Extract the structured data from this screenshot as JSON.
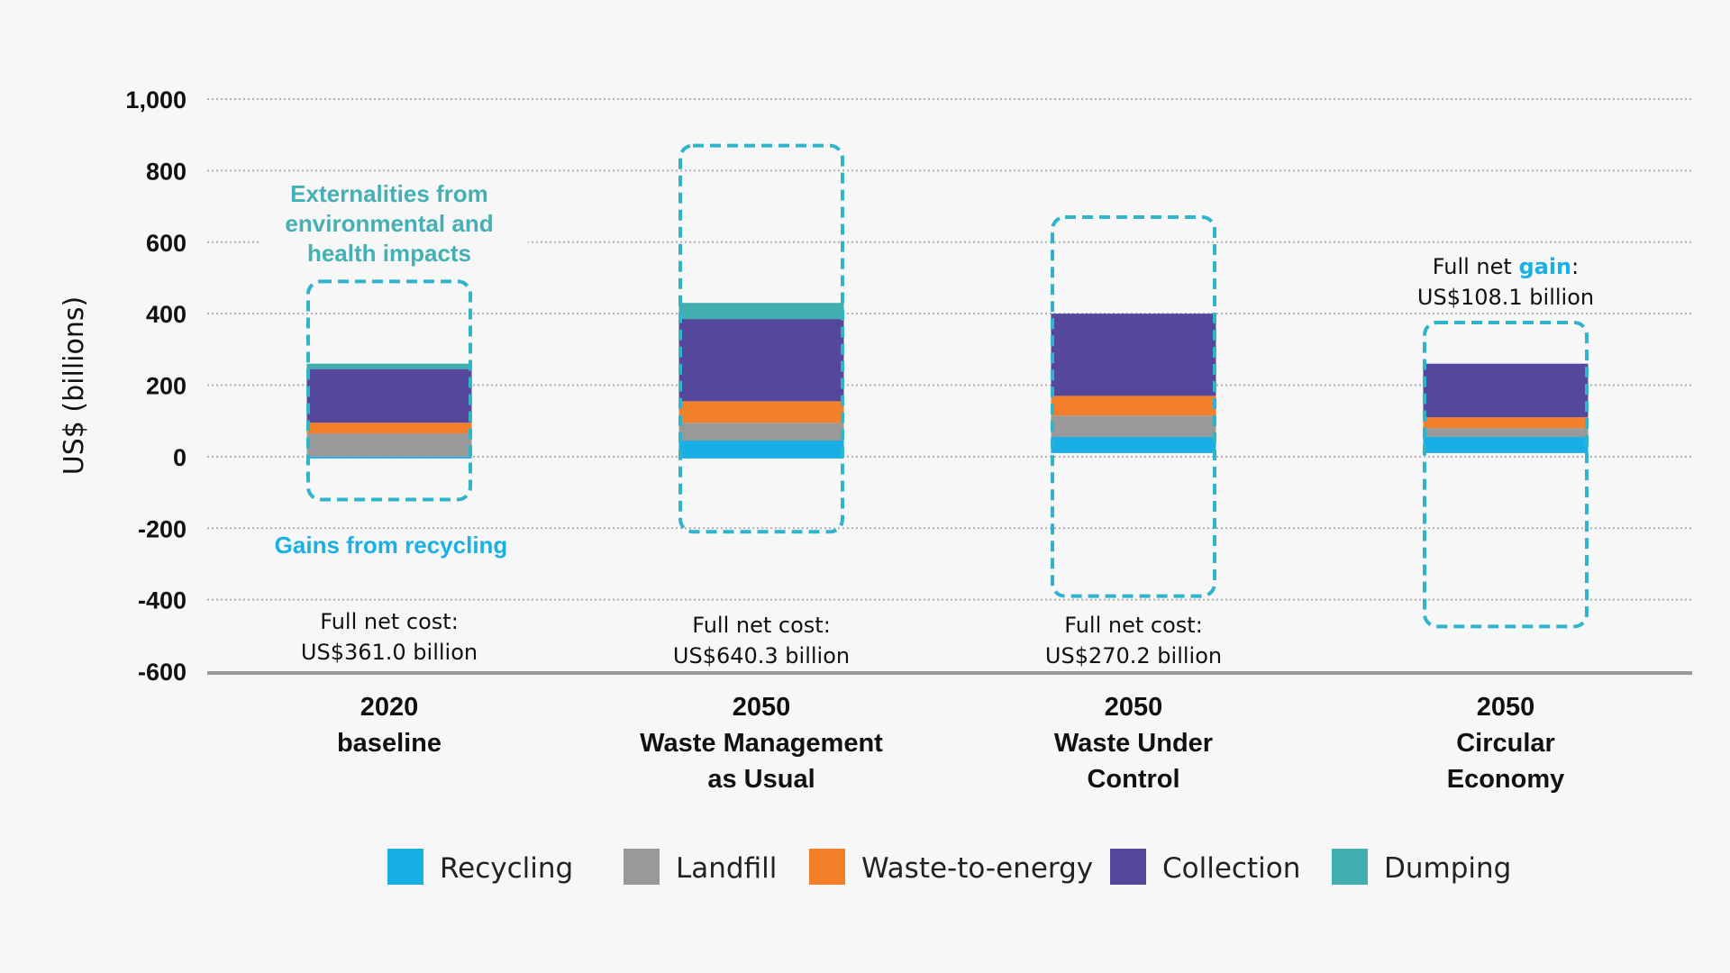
{
  "chart_data": {
    "type": "bar",
    "stacked": true,
    "ylabel": "US$ (billions)",
    "ylim": [
      -600,
      1000
    ],
    "yticks": [
      1000,
      800,
      600,
      400,
      200,
      0,
      -200,
      -400,
      -600
    ],
    "ytick_labels": [
      "1,000",
      "800",
      "600",
      "400",
      "200",
      "0",
      "-200",
      "-400",
      "-600"
    ],
    "grid": true,
    "legend_position": "bottom",
    "categories": [
      [
        "2020",
        "baseline"
      ],
      [
        "2050",
        "Waste Management",
        "as Usual"
      ],
      [
        "2050",
        "Waste Under",
        "Control"
      ],
      [
        "2050",
        "Circular",
        "Economy"
      ]
    ],
    "series": [
      {
        "name": "Recycling",
        "color": "#19aee6",
        "ranges": [
          [
            -5,
            0
          ],
          [
            -5,
            45
          ],
          [
            10,
            55
          ],
          [
            10,
            55
          ]
        ]
      },
      {
        "name": "Landfill",
        "color": "#999999",
        "ranges": [
          [
            0,
            65
          ],
          [
            45,
            95
          ],
          [
            55,
            115
          ],
          [
            55,
            80
          ]
        ]
      },
      {
        "name": "Waste-to-energy",
        "color": "#f47f2b",
        "ranges": [
          [
            65,
            95
          ],
          [
            95,
            155
          ],
          [
            115,
            170
          ],
          [
            80,
            110
          ]
        ]
      },
      {
        "name": "Collection",
        "color": "#55479b",
        "ranges": [
          [
            95,
            245
          ],
          [
            155,
            385
          ],
          [
            170,
            400
          ],
          [
            110,
            260
          ]
        ]
      },
      {
        "name": "Dumping",
        "color": "#42aeb0",
        "ranges": [
          [
            245,
            260
          ],
          [
            385,
            430
          ],
          [
            400,
            400
          ],
          [
            260,
            260
          ]
        ]
      }
    ],
    "externality_boxes": [
      [
        -120,
        490
      ],
      [
        -210,
        870
      ],
      [
        -390,
        670
      ],
      [
        -475,
        375
      ]
    ],
    "net_labels": [
      {
        "prefix": "Full net cost:",
        "highlight": "",
        "suffix": "",
        "amount": "US$361.0 billion"
      },
      {
        "prefix": "Full net cost:",
        "highlight": "",
        "suffix": "",
        "amount": "US$640.3 billion"
      },
      {
        "prefix": "Full net cost:",
        "highlight": "",
        "suffix": "",
        "amount": "US$270.2 billion"
      },
      {
        "prefix": "Full net ",
        "highlight": "gain",
        "suffix": ":",
        "amount": "US$108.1 billion"
      }
    ],
    "annotations": {
      "externalities": [
        "Externalities from",
        "environmental and",
        "health impacts"
      ],
      "gains": "Gains from recycling"
    },
    "colors": {
      "box_outline": "#2fb4cc",
      "axis": "#999999",
      "grid": "#b0b0b0",
      "highlight": "#1ab0e3"
    }
  }
}
